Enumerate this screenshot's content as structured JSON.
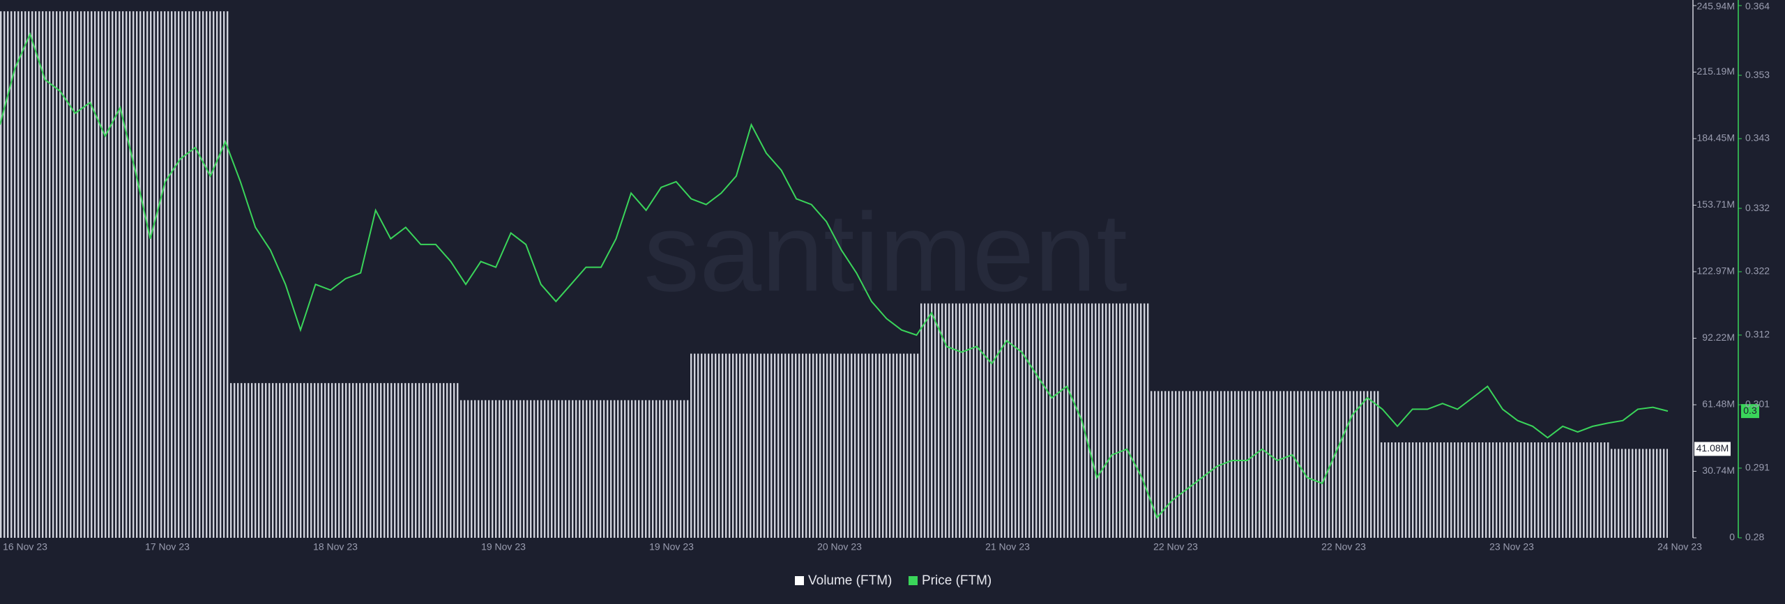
{
  "chart_data": {
    "type": "volume-price",
    "watermark": "santiment",
    "xticks": [
      "16 Nov 23",
      "17 Nov 23",
      "18 Nov 23",
      "19 Nov 23",
      "19 Nov 23",
      "20 Nov 23",
      "21 Nov 23",
      "22 Nov 23",
      "22 Nov 23",
      "23 Nov 23",
      "24 Nov 23"
    ],
    "ylim": [
      0,
      245940000
    ],
    "yticks": [
      0,
      {
        "value": 30740000,
        "label": "30.74M"
      },
      {
        "value": 61480000,
        "label": "61.48M"
      },
      {
        "value": 92220000,
        "label": "92.22M"
      },
      {
        "value": 122970000,
        "label": "122.97M"
      },
      {
        "value": 153710000,
        "label": "153.71M"
      },
      {
        "value": 184450000,
        "label": "184.45M"
      },
      {
        "value": 215190000,
        "label": "215.19M"
      },
      {
        "value": 245940000,
        "label": "245.94M"
      }
    ],
    "y2lim": [
      0.28,
      0.364
    ],
    "y2ticks": [
      0.28,
      0.291,
      0.301,
      0.312,
      0.322,
      0.332,
      0.343,
      0.353,
      0.364
    ],
    "series": [
      {
        "name": "Volume (FTM)",
        "color": "#d0d2dc",
        "type": "bar",
        "values": [
          243300000,
          71500000,
          63600000,
          85100000,
          108300000,
          67800000,
          44100000,
          41080000
        ],
        "value_labels": [
          null,
          null,
          null,
          null,
          null,
          null,
          null,
          "41.08M"
        ]
      },
      {
        "name": "Price (FTM)",
        "color": "#3ad55a",
        "type": "line",
        "axis": "y2",
        "values": [
          0.3452,
          0.3541,
          0.3595,
          0.3523,
          0.3505,
          0.347,
          0.3487,
          0.3434,
          0.3479,
          0.338,
          0.3272,
          0.3362,
          0.3398,
          0.3416,
          0.3371,
          0.3425,
          0.3362,
          0.329,
          0.3254,
          0.32,
          0.3128,
          0.32,
          0.3191,
          0.3209,
          0.3218,
          0.3317,
          0.3272,
          0.329,
          0.3263,
          0.3263,
          0.3236,
          0.32,
          0.3236,
          0.3227,
          0.3281,
          0.3263,
          0.32,
          0.3173,
          0.32,
          0.3227,
          0.3227,
          0.3272,
          0.3344,
          0.3317,
          0.3353,
          0.3362,
          0.3335,
          0.3326,
          0.3344,
          0.3371,
          0.3452,
          0.3407,
          0.338,
          0.3335,
          0.3326,
          0.3299,
          0.3254,
          0.3218,
          0.3173,
          0.3146,
          0.3128,
          0.312,
          0.3155,
          0.3102,
          0.3093,
          0.3102,
          0.3075,
          0.3111,
          0.3093,
          0.3057,
          0.3021,
          0.3039,
          0.2985,
          0.2895,
          0.2931,
          0.294,
          0.2895,
          0.2832,
          0.2859,
          0.2877,
          0.2895,
          0.2913,
          0.2922,
          0.2922,
          0.294,
          0.2922,
          0.2931,
          0.2895,
          0.2886,
          0.294,
          0.2994,
          0.3021,
          0.3003,
          0.2976,
          0.3003,
          0.3003,
          0.3012,
          0.3003,
          0.3021,
          0.3039,
          0.3003,
          0.2985,
          0.2976,
          0.2958,
          0.2976,
          0.2967,
          0.2976,
          0.2981,
          0.2985,
          0.3003,
          0.3006,
          0.3
        ]
      }
    ]
  }
}
